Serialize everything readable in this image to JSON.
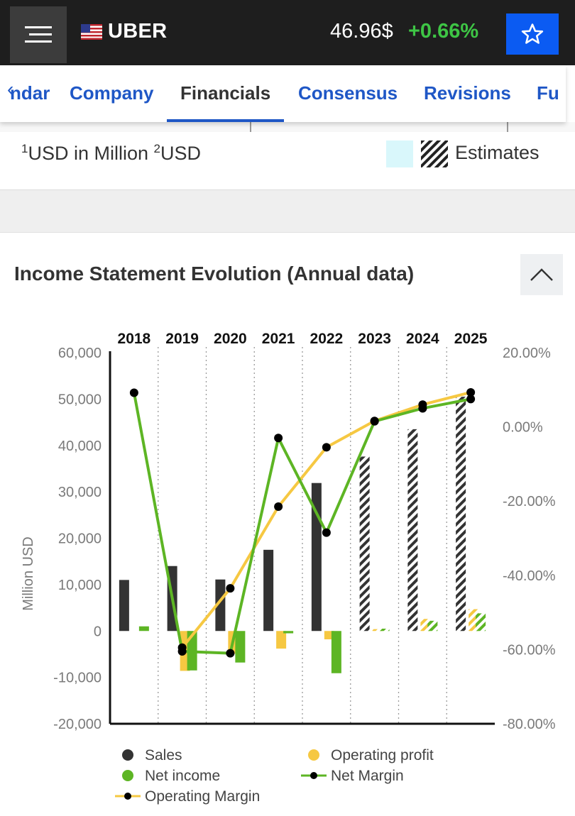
{
  "header": {
    "ticker": "UBER",
    "price": "46.96$",
    "change": "+0.66%",
    "colors": {
      "background": "#1e1e1e",
      "positive": "#3ec545",
      "star_button": "#0b5bf2"
    }
  },
  "tabs": [
    {
      "label": "ndar",
      "active": false
    },
    {
      "label": "Company",
      "active": false
    },
    {
      "label": "Financials",
      "active": true
    },
    {
      "label": "Consensus",
      "active": false
    },
    {
      "label": "Revisions",
      "active": false
    },
    {
      "label": "Fu",
      "active": false
    }
  ],
  "legend": {
    "units_1": "USD in Million",
    "units_1_sup": "1",
    "units_2": "USD",
    "units_2_sup": "2",
    "estimates_label": "Estimates"
  },
  "section": {
    "title": "Income Statement Evolution (Annual data)"
  },
  "chart_data": {
    "type": "bar",
    "categories": [
      "2018",
      "2019",
      "2020",
      "2021",
      "2022",
      "2023",
      "2024",
      "2025"
    ],
    "estimate_start_index": 5,
    "ylabel": "Million USD",
    "ylim": [
      -20000,
      60000
    ],
    "y_ticks": [
      "60,000",
      "50,000",
      "40,000",
      "30,000",
      "20,000",
      "10,000",
      "0",
      "-10,000",
      "-20,000"
    ],
    "y2lim": [
      -80,
      20
    ],
    "y2_ticks": [
      "20.00%",
      "0.00%",
      "-20.00%",
      "-40.00%",
      "-60.00%",
      "-80.00%"
    ],
    "bar_series": [
      {
        "name": "Sales",
        "color": "#333333",
        "values": [
          11000,
          14000,
          11100,
          17500,
          31900,
          37600,
          43500,
          50500
        ]
      },
      {
        "name": "Operating profit",
        "color": "#f6c842",
        "values": [
          0,
          -8600,
          -4900,
          -3800,
          -1800,
          400,
          2600,
          4700
        ]
      },
      {
        "name": "Net income",
        "color": "#5db524",
        "values": [
          1000,
          -8500,
          -6800,
          -500,
          -9100,
          500,
          2200,
          3800
        ]
      }
    ],
    "line_series": [
      {
        "name": "Net Margin",
        "color": "#5db524",
        "axis": "right",
        "values": [
          9.2,
          -60.5,
          -61.0,
          -3.0,
          -28.5,
          1.5,
          5.0,
          7.5
        ]
      },
      {
        "name": "Operating Margin",
        "color": "#f6c842",
        "axis": "right",
        "values": [
          null,
          -59.5,
          -43.5,
          -21.5,
          -5.5,
          1.6,
          6.0,
          9.3
        ]
      }
    ],
    "legend_entries": [
      "Sales",
      "Operating profit",
      "Net income",
      "Net Margin",
      "Operating Margin"
    ]
  }
}
